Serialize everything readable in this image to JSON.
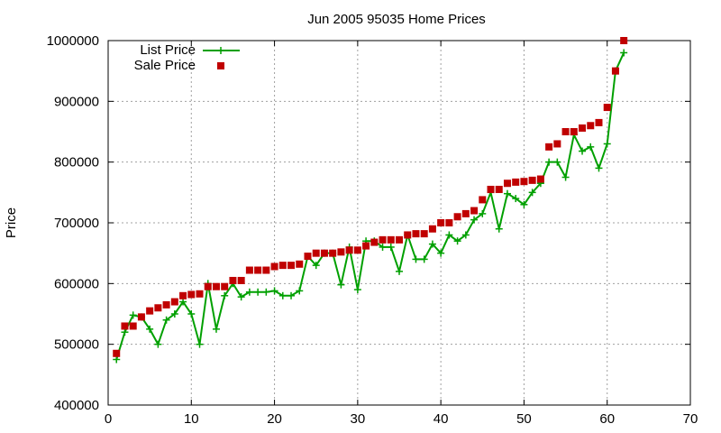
{
  "chart_data": {
    "type": "line",
    "title": "Jun 2005 95035 Home Prices",
    "xlabel": "",
    "ylabel": "Price",
    "xlim": [
      0,
      70
    ],
    "ylim": [
      400000,
      1000000
    ],
    "x_ticks": [
      "0",
      "10",
      "20",
      "30",
      "40",
      "50",
      "60",
      "70"
    ],
    "y_ticks": [
      "400000",
      "500000",
      "600000",
      "700000",
      "800000",
      "900000",
      "1000000"
    ],
    "grid": true,
    "legend_position": "top-left",
    "x": [
      1,
      2,
      3,
      4,
      5,
      6,
      7,
      8,
      9,
      10,
      11,
      12,
      13,
      14,
      15,
      16,
      17,
      18,
      19,
      20,
      21,
      22,
      23,
      24,
      25,
      26,
      27,
      28,
      29,
      30,
      31,
      32,
      33,
      34,
      35,
      36,
      37,
      38,
      39,
      40,
      41,
      42,
      43,
      44,
      45,
      46,
      47,
      48,
      49,
      50,
      51,
      52,
      53,
      54,
      55,
      56,
      57,
      58,
      59,
      60,
      61,
      62
    ],
    "series": [
      {
        "name": "List Price",
        "color": "#00a000",
        "style": "line-plus",
        "values": [
          475000,
          520000,
          548000,
          545000,
          525000,
          500000,
          540000,
          550000,
          570000,
          550000,
          500000,
          600000,
          525000,
          580000,
          600000,
          578000,
          586000,
          586000,
          586000,
          588000,
          580000,
          580000,
          588000,
          645000,
          630000,
          650000,
          650000,
          598000,
          660000,
          590000,
          670000,
          670000,
          660000,
          660000,
          620000,
          680000,
          640000,
          640000,
          665000,
          650000,
          680000,
          670000,
          680000,
          705000,
          715000,
          750000,
          690000,
          748000,
          740000,
          730000,
          750000,
          765000,
          800000,
          800000,
          775000,
          845000,
          818000,
          825000,
          790000,
          830000,
          950000,
          980000
        ]
      },
      {
        "name": "Sale Price",
        "color": "#c00000",
        "style": "square",
        "values": [
          485000,
          530000,
          530000,
          545000,
          555000,
          560000,
          565000,
          570000,
          580000,
          582000,
          583000,
          595000,
          595000,
          595000,
          605000,
          605000,
          622000,
          622000,
          622000,
          628000,
          630000,
          630000,
          632000,
          645000,
          650000,
          650000,
          650000,
          652000,
          655000,
          655000,
          662000,
          668000,
          672000,
          672000,
          672000,
          680000,
          682000,
          682000,
          690000,
          700000,
          700000,
          710000,
          715000,
          720000,
          738000,
          755000,
          755000,
          765000,
          767000,
          768000,
          770000,
          772000,
          825000,
          830000,
          850000,
          850000,
          856000,
          860000,
          865000,
          890000,
          950000,
          1000000
        ]
      }
    ]
  }
}
